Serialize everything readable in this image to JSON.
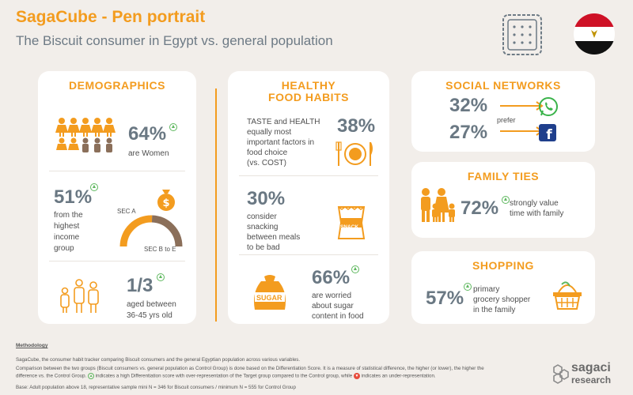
{
  "header": {
    "title": "SagaCube - Pen portrait",
    "subtitle": "The Biscuit consumer in Egypt vs. general population"
  },
  "demographics": {
    "heading": "DEMOGRAPHICS",
    "women_pct": "64%",
    "women_label": "are Women",
    "income_pct": "51%",
    "income_label_1": "from the",
    "income_label_2": "highest",
    "income_label_3": "income",
    "income_label_4": "group",
    "sec_a": "SEC A",
    "sec_be": "SEC B to E",
    "sec_a_share": 0.51,
    "age_value": "1/3",
    "age_label_1": "aged between",
    "age_label_2": "36-45 yrs old"
  },
  "healthy": {
    "heading_1": "HEALTHY",
    "heading_2": "FOOD HABITS",
    "taste_text_1": "TASTE and HEALTH",
    "taste_text_2": "equally most",
    "taste_text_3": "important factors in",
    "taste_text_4": "food choice",
    "taste_text_5": "(vs. COST)",
    "taste_pct": "38%",
    "snack_pct": "30%",
    "snack_text_1": "consider",
    "snack_text_2": "snacking",
    "snack_text_3": "between meals",
    "snack_text_4": "to be bad",
    "snack_bag_label": "SNACK",
    "sugar_pct": "66%",
    "sugar_text_1": "are worried",
    "sugar_text_2": "about sugar",
    "sugar_text_3": "content in food",
    "sugar_bag_label": "SUGAR"
  },
  "social": {
    "heading": "SOCIAL NETWORKS",
    "whatsapp_pct": "32%",
    "facebook_pct": "27%",
    "prefer": "prefer"
  },
  "family": {
    "heading": "FAMILY TIES",
    "pct": "72%",
    "text_1": "strongly value",
    "text_2": "time with family"
  },
  "shopping": {
    "heading": "SHOPPING",
    "pct": "57%",
    "text_1": "primary",
    "text_2": "grocery shopper",
    "text_3": "in the family"
  },
  "footer": {
    "methodology": "Methodology",
    "line1": "SagaCube, the consumer habit tracker comparing Biscuit consumers and the general Egyptian population across various variables.",
    "line2": "Comparison between the two groups (Biscuit consumers vs. general population as Control Group) is done based on the Differentiation Score. It is a measure of statistical difference, the higher (or lower), the higher the",
    "line3a": "difference vs. the Control Group.",
    "line3b": "indicates a high Differentiation score with over-representation of the Target group compared to the Control group, while",
    "line3c": "indicates an under-representation.",
    "line4": "Base: Adult population above 18, representative sample mini N = 346 for Biscuit consumers / minimum N = 555 for Control Group",
    "brand_1": "sagaci",
    "brand_2": "research"
  },
  "colors": {
    "accent": "#f39c1f",
    "slate": "#6a7883",
    "brown": "#8b6f5a",
    "green": "#5fb85f"
  }
}
